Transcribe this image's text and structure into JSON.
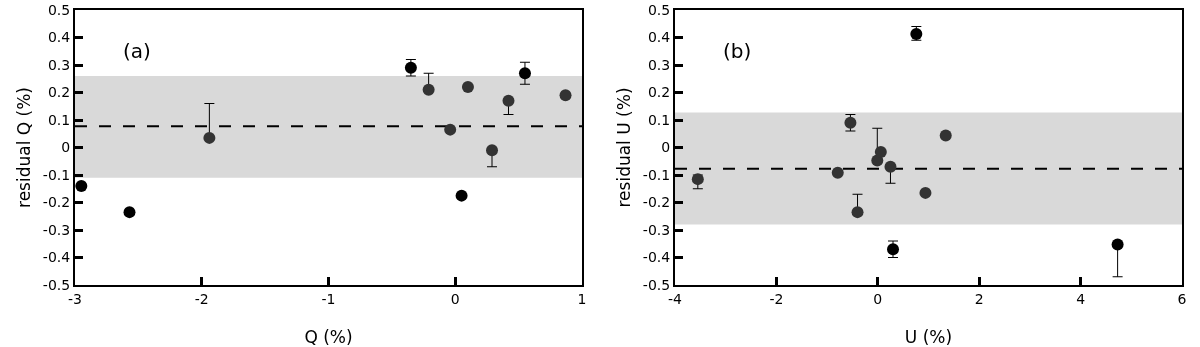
{
  "chart_data": [
    {
      "type": "scatter",
      "xlabel": "Q (%)",
      "ylabel": "residual Q (%)",
      "annotations": [
        "(a)"
      ],
      "marker": "circle",
      "grid": false,
      "x": [
        -2.95,
        -2.57,
        -1.94,
        -0.35,
        -0.21,
        -0.04,
        0.05,
        0.1,
        0.29,
        0.42,
        0.55,
        0.87
      ],
      "values": [
        -0.14,
        -0.235,
        0.035,
        0.29,
        0.21,
        0.065,
        -0.175,
        0.22,
        -0.01,
        0.17,
        0.27,
        0.19
      ],
      "errors": [
        null,
        null,
        [
          0.035,
          0.16
        ],
        [
          0.26,
          0.32
        ],
        [
          0.21,
          0.27
        ],
        null,
        null,
        null,
        [
          -0.07,
          -0.01
        ],
        [
          0.12,
          0.17
        ],
        [
          0.23,
          0.31
        ],
        null
      ],
      "colors": [
        "#000000",
        "#000000",
        "#333333",
        "#000000",
        "#333333",
        "#333333",
        "#000000",
        "#333333",
        "#333333",
        "#333333",
        "#000000",
        "#333333"
      ],
      "ref_lines": [
        {
          "axis": "y",
          "value": 0.077,
          "color": "#000000",
          "line_style": "dashed"
        }
      ],
      "bands": [
        {
          "axis": "y",
          "from": -0.11,
          "to": 0.26,
          "color": "#d9d9d9"
        }
      ],
      "xlim": [
        -3,
        1
      ],
      "xticks": [
        -3,
        -2,
        -1,
        0,
        1
      ],
      "ylim": [
        -0.5,
        0.5
      ],
      "yticks": [
        -0.5,
        -0.4,
        -0.3,
        -0.2,
        -0.1,
        0,
        0.1,
        0.2,
        0.3,
        0.4,
        0.5
      ]
    },
    {
      "type": "scatter",
      "xlabel": "U (%)",
      "ylabel": "residual U (%)",
      "annotations": [
        "(b)"
      ],
      "marker": "circle",
      "grid": false,
      "x": [
        -3.55,
        -0.79,
        -0.54,
        -0.4,
        -0.01,
        0.06,
        0.25,
        0.3,
        0.76,
        0.94,
        1.34,
        4.73
      ],
      "values": [
        -0.115,
        -0.092,
        0.09,
        -0.235,
        -0.047,
        -0.016,
        -0.07,
        -0.37,
        0.413,
        -0.165,
        0.044,
        -0.353
      ],
      "errors": [
        [
          -0.15,
          -0.1
        ],
        null,
        [
          0.06,
          0.12
        ],
        [
          -0.235,
          -0.17
        ],
        [
          -0.047,
          0.07
        ],
        null,
        [
          -0.13,
          -0.07
        ],
        [
          -0.4,
          -0.34
        ],
        [
          0.39,
          0.44
        ],
        null,
        null,
        [
          -0.47,
          -0.353
        ]
      ],
      "colors": [
        "#333333",
        "#333333",
        "#333333",
        "#333333",
        "#333333",
        "#333333",
        "#333333",
        "#000000",
        "#000000",
        "#333333",
        "#333333",
        "#000000"
      ],
      "ref_lines": [
        {
          "axis": "y",
          "value": -0.077,
          "color": "#000000",
          "line_style": "dashed"
        }
      ],
      "bands": [
        {
          "axis": "y",
          "from": -0.28,
          "to": 0.127,
          "color": "#d9d9d9"
        }
      ],
      "xlim": [
        -4,
        6
      ],
      "xticks": [
        -4,
        -2,
        0,
        2,
        4,
        6
      ],
      "ylim": [
        -0.5,
        0.5
      ],
      "yticks": [
        -0.5,
        -0.4,
        -0.3,
        -0.2,
        -0.1,
        0,
        0.1,
        0.2,
        0.3,
        0.4,
        0.5
      ]
    }
  ]
}
